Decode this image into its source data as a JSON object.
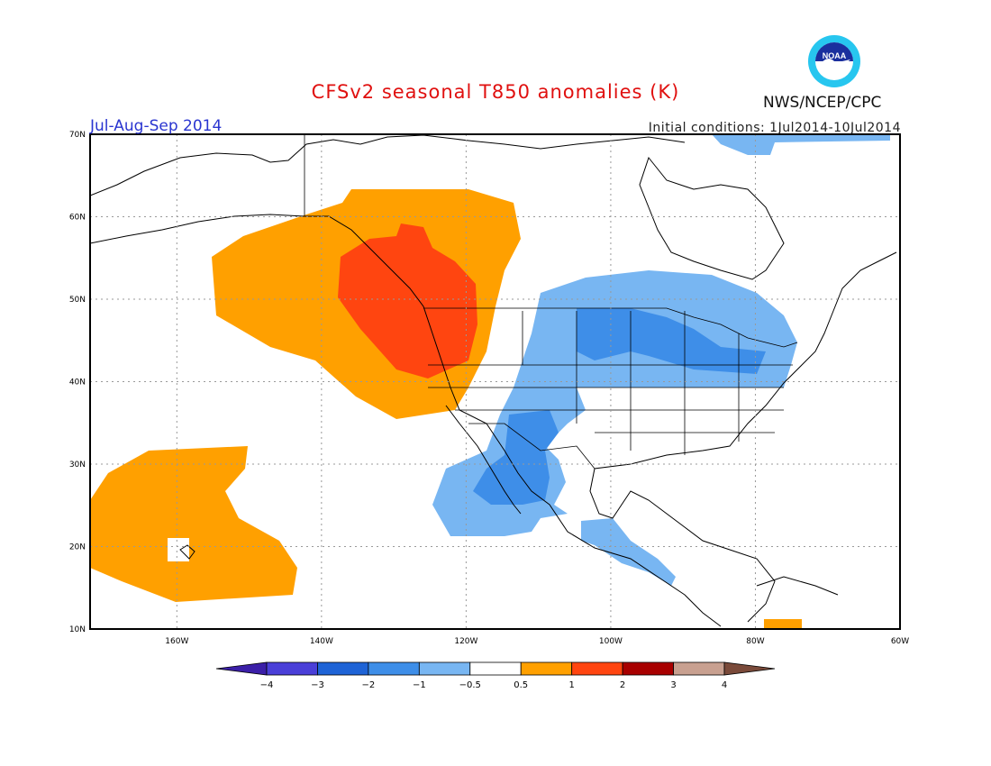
{
  "header": {
    "title": "CFSv2 seasonal T850 anomalies (K)",
    "season": "Jul-Aug-Sep 2014",
    "initial_conditions": "Initial conditions: 1Jul2014-10Jul2014",
    "agency": "NWS/NCEP/CPC",
    "logo_text": "NOAA"
  },
  "map": {
    "lon_range": [
      -172,
      -60
    ],
    "lat_range": [
      10,
      70
    ],
    "lat_labels": [
      "10N",
      "20N",
      "30N",
      "40N",
      "50N",
      "60N",
      "70N"
    ],
    "lat_values": [
      10,
      20,
      30,
      40,
      50,
      60,
      70
    ],
    "lon_labels": [
      "160W",
      "140W",
      "120W",
      "100W",
      "80W",
      "60W"
    ],
    "lon_values": [
      -160,
      -140,
      -120,
      -100,
      -80,
      -60
    ]
  },
  "colorbar": {
    "labels": [
      "-4",
      "-3",
      "-2",
      "-1",
      "-0.5",
      "0.5",
      "1",
      "2",
      "3",
      "4"
    ],
    "colors": [
      "#3b1fa8",
      "#4a3fd8",
      "#1e63d6",
      "#3e8ee8",
      "#78b6f2",
      "#ffffff",
      "#ffa000",
      "#ff4510",
      "#a80000",
      "#c8a090",
      "#7a4a3a"
    ]
  },
  "colors": {
    "warm_light": "#ffa000",
    "warm_strong": "#ff4510",
    "cool_light": "#78b6f2",
    "cool_mid": "#3e8ee8"
  }
}
